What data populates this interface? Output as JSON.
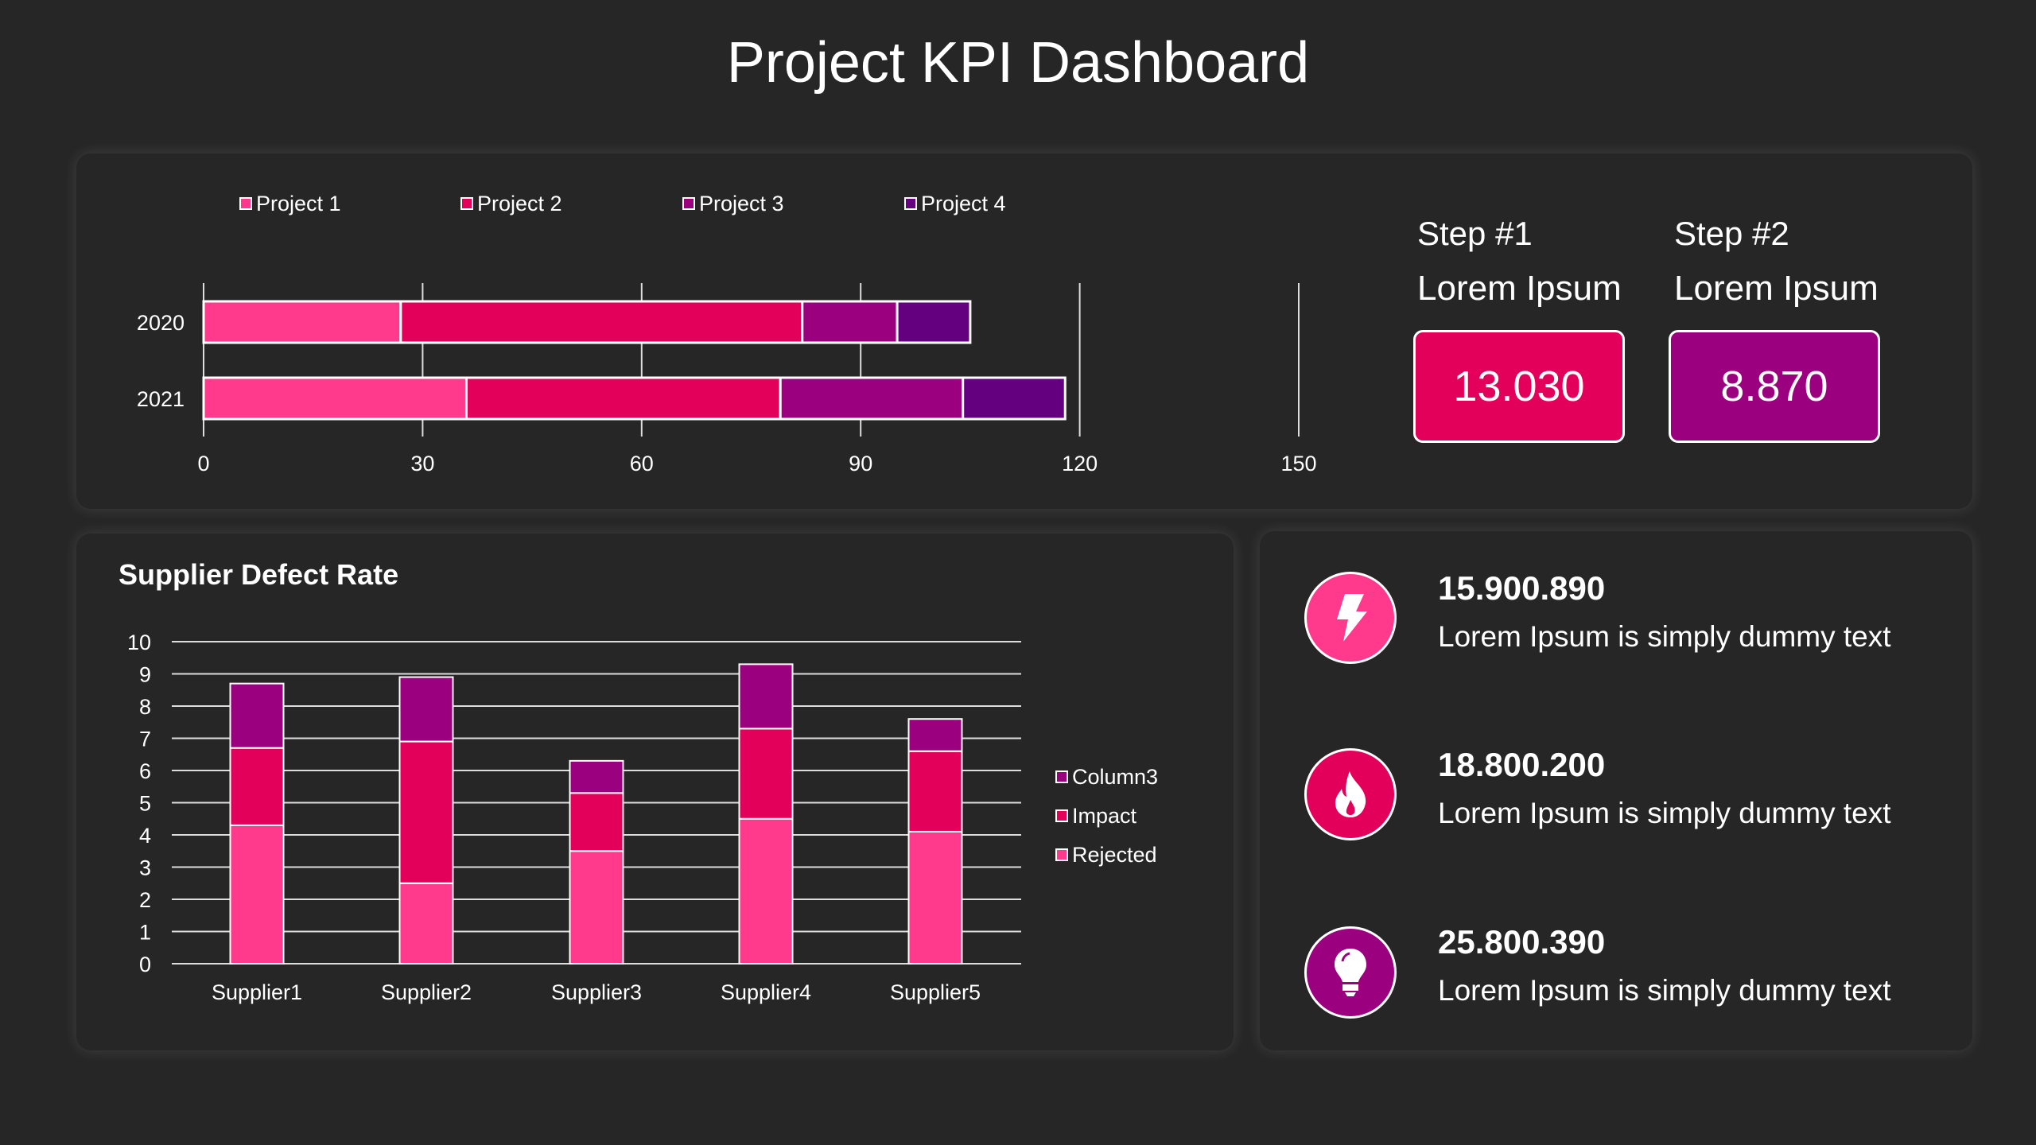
{
  "title": "Project KPI Dashboard",
  "colors": {
    "pink": "#FF3A8C",
    "crimson": "#E2005A",
    "magenta": "#9B007F",
    "purple": "#640080"
  },
  "chart_data": [
    {
      "type": "bar",
      "orientation": "horizontal",
      "stacked": true,
      "categories": [
        "2020",
        "2021"
      ],
      "series": [
        {
          "name": "Project 1",
          "values": [
            27,
            36
          ],
          "color": "#FF3A8C"
        },
        {
          "name": "Project 2",
          "values": [
            55,
            43
          ],
          "color": "#E2005A"
        },
        {
          "name": "Project 3",
          "values": [
            13,
            25
          ],
          "color": "#9B007F"
        },
        {
          "name": "Project 4",
          "values": [
            10,
            14
          ],
          "color": "#640080"
        }
      ],
      "xlim": [
        0,
        150
      ],
      "xticks": [
        "0",
        "30",
        "60",
        "90",
        "120",
        "150"
      ],
      "grid": true,
      "legend": "top"
    },
    {
      "type": "bar",
      "stacked": true,
      "title": "Supplier Defect Rate",
      "categories": [
        "Supplier1",
        "Supplier2",
        "Supplier3",
        "Supplier4",
        "Supplier5"
      ],
      "series": [
        {
          "name": "Rejected",
          "values": [
            4.3,
            2.5,
            3.5,
            4.5,
            4.1
          ],
          "color": "#FF3A8C"
        },
        {
          "name": "Impact",
          "values": [
            2.4,
            4.4,
            1.8,
            2.8,
            2.5
          ],
          "color": "#E2005A"
        },
        {
          "name": "Column3",
          "values": [
            2.0,
            2.0,
            1.0,
            2.0,
            1.0
          ],
          "color": "#9B007F"
        }
      ],
      "ylim": [
        0,
        10
      ],
      "yticks": [
        "0",
        "1",
        "2",
        "3",
        "4",
        "5",
        "6",
        "7",
        "8",
        "9",
        "10"
      ],
      "grid": true,
      "legend": "right"
    }
  ],
  "steps": [
    {
      "label": "Step #1",
      "sub": "Lorem Ipsum",
      "value": "13.030",
      "color": "#E2005A"
    },
    {
      "label": "Step #2",
      "sub": "Lorem Ipsum",
      "value": "8.870",
      "color": "#9B007F"
    }
  ],
  "kpis": [
    {
      "value": "15.900.890",
      "text": "Lorem Ipsum is simply dummy text",
      "icon": "lightning-icon",
      "color": "#FF3A8C"
    },
    {
      "value": "18.800.200",
      "text": "Lorem Ipsum is simply dummy text",
      "icon": "fire-icon",
      "color": "#E2005A"
    },
    {
      "value": "25.800.390",
      "text": "Lorem Ipsum is simply dummy text",
      "icon": "lightbulb-icon",
      "color": "#9B007F"
    }
  ]
}
